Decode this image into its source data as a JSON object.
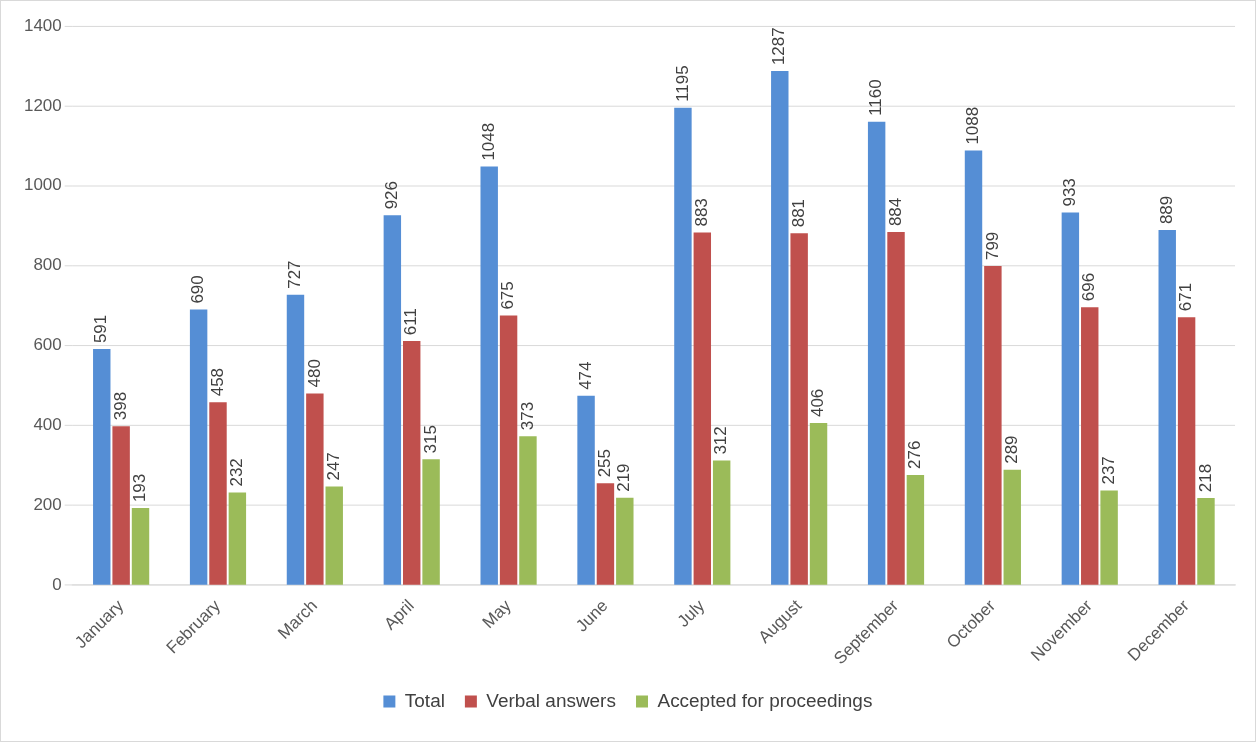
{
  "chart_data": {
    "type": "bar",
    "categories": [
      "January",
      "February",
      "March",
      "April",
      "May",
      "June",
      "July",
      "August",
      "September",
      "October",
      "November",
      "December"
    ],
    "series": [
      {
        "name": "Total",
        "color": "#558ed5",
        "values": [
          591,
          690,
          727,
          926,
          1048,
          474,
          1195,
          1287,
          1160,
          1088,
          933,
          889
        ]
      },
      {
        "name": "Verbal answers",
        "color": "#c0504d",
        "values": [
          398,
          458,
          480,
          611,
          675,
          255,
          883,
          881,
          884,
          799,
          696,
          671
        ]
      },
      {
        "name": "Accepted for proceedings",
        "color": "#9bbb59",
        "values": [
          193,
          232,
          247,
          315,
          373,
          219,
          312,
          406,
          276,
          289,
          237,
          218
        ]
      }
    ],
    "ylim": [
      0,
      1400
    ],
    "yticks": [
      0,
      200,
      400,
      600,
      800,
      1000,
      1200,
      1400
    ],
    "grid": "y",
    "legend": "bottom",
    "data_labels": true
  }
}
